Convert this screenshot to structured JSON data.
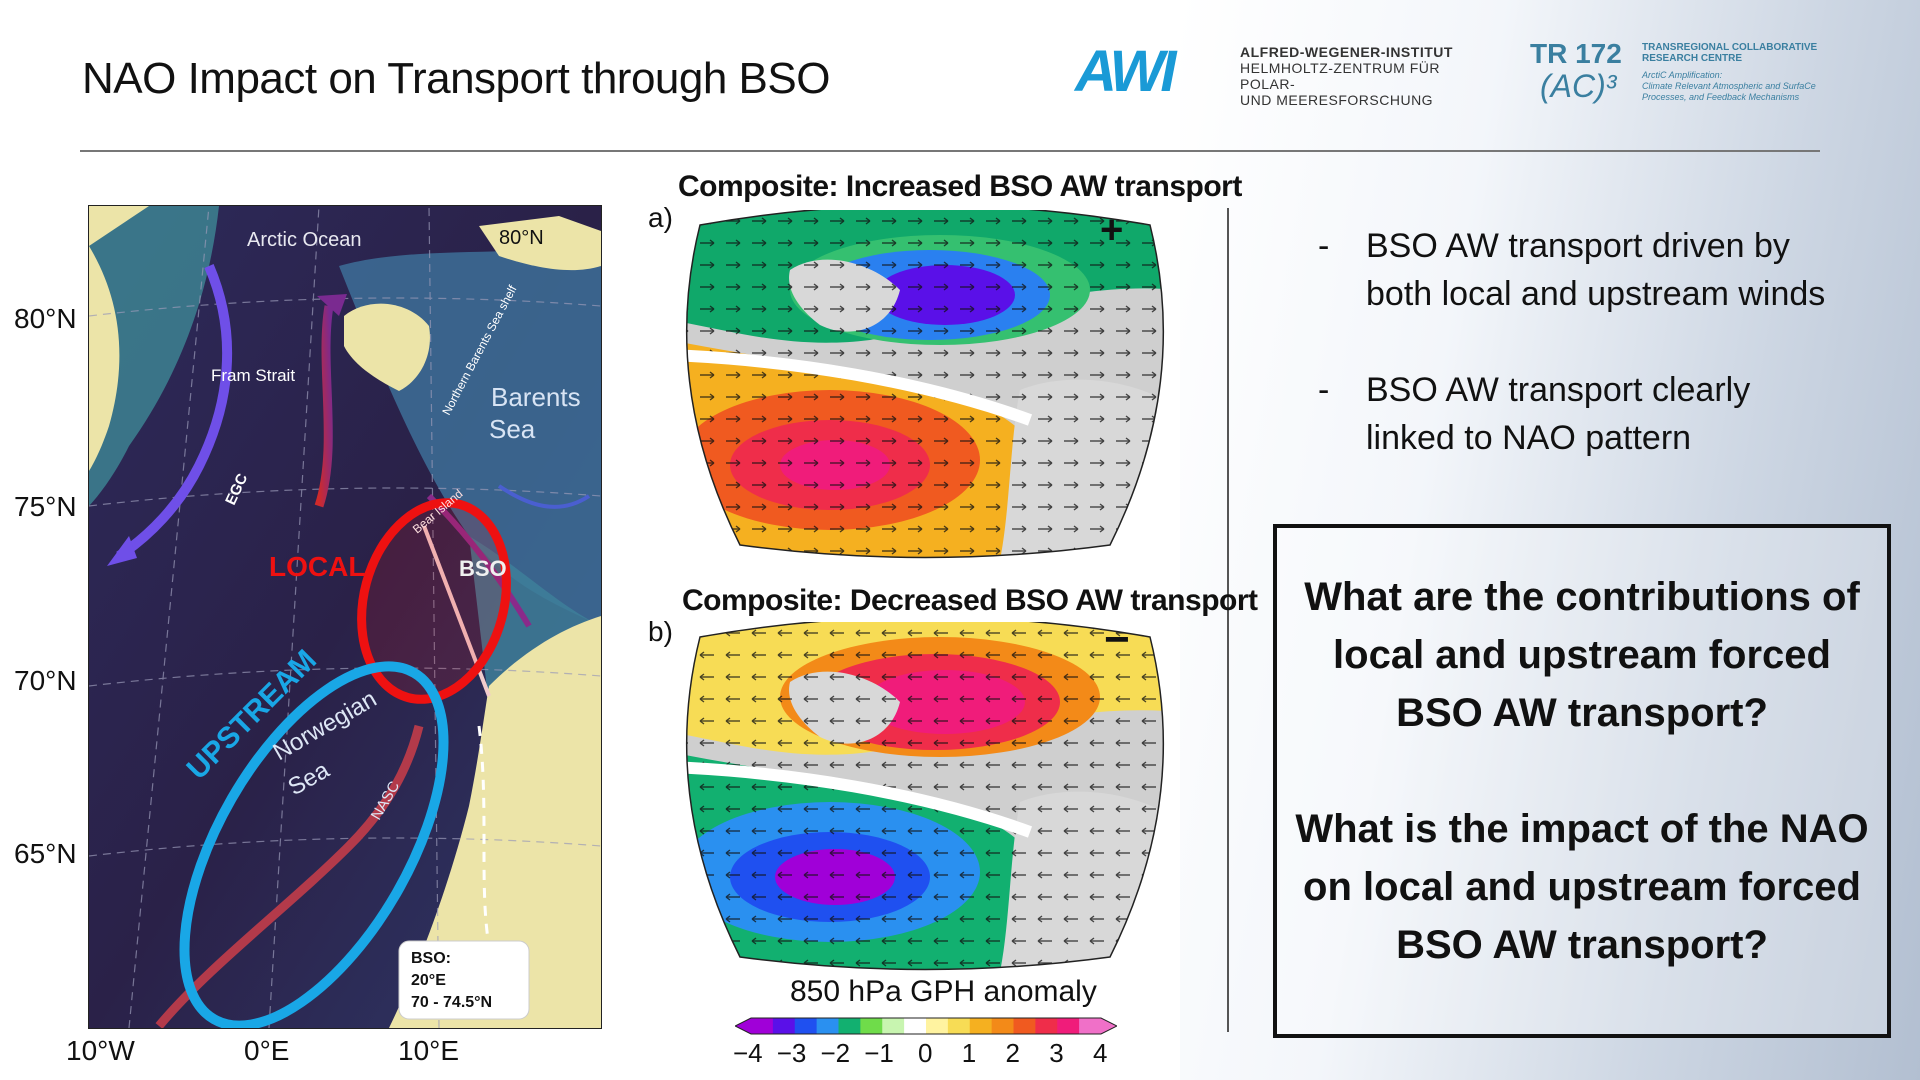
{
  "slide": {
    "title": "NAO Impact on Transport through BSO"
  },
  "logos": {
    "awi_mark": "AWI",
    "awi_line1": "ALFRED-WEGENER-INSTITUT",
    "awi_line2": "HELMHOLTZ-ZENTRUM FÜR POLAR-",
    "awi_line3": "UND MEERESFORSCHUNG",
    "tr_mark": "TR 172",
    "tr_sub": "(AC)³",
    "tr_line1": "TRANSREGIONAL COLLABORATIVE",
    "tr_line2": "RESEARCH CENTRE",
    "tr_small1": "ArctiC Amplification:",
    "tr_small2": "Climate Relevant Atmospheric and SurfaCe",
    "tr_small3": "Processes, and Feedback Mechanisms"
  },
  "left_map": {
    "lat_labels": [
      "80°N",
      "75°N",
      "70°N",
      "65°N"
    ],
    "lon_labels": [
      "10°W",
      "0°E",
      "10°E"
    ],
    "labels": {
      "arctic": "Arctic Ocean",
      "n80": "80°N",
      "fram": "Fram Strait",
      "nbss": "Northern Barents Sea shelf",
      "barents1": "Barents",
      "barents2": "Sea",
      "egc": "EGC",
      "bear": "Bear Island",
      "local": "LOCAL",
      "bso": "BSO",
      "upstream": "UPSTREAM",
      "norw1": "Norwegian",
      "norw2": "Sea",
      "nasc": "NASC",
      "box1": "BSO:",
      "box2": "20°E",
      "box3": "70 - 74.5°N"
    },
    "colors": {
      "local": "#ee1111",
      "upstream": "#19a7e6",
      "ocean_deep": "#2b2147",
      "land": "#ece4a8"
    }
  },
  "panels": {
    "a": {
      "letter": "a)",
      "title": "Composite: Increased BSO AW transport",
      "sign": "+"
    },
    "b": {
      "letter": "b)",
      "title": "Composite: Decreased BSO AW transport",
      "sign": "−"
    }
  },
  "colorbar": {
    "title": "850 hPa GPH anomaly",
    "ticks": [
      "−4",
      "−3",
      "−2",
      "−1",
      "0",
      "1",
      "2",
      "3",
      "4"
    ],
    "colors": [
      "#a000d8",
      "#5a10e8",
      "#1f50f0",
      "#2a90f0",
      "#12b070",
      "#6fdc4a",
      "#c8f5b0",
      "#ffffff",
      "#fff3a0",
      "#f7dc55",
      "#f5b020",
      "#f38a18",
      "#f05a20",
      "#ef2d4a",
      "#f01c7a",
      "#f070c8"
    ]
  },
  "bullets": [
    {
      "dash": "-",
      "text": "BSO AW transport driven by both local and upstream winds"
    },
    {
      "dash": "-",
      "text": "BSO AW transport clearly linked to NAO pattern"
    }
  ],
  "questions": {
    "q1_l1": "What are the contributions of",
    "q1_l2": "local and upstream forced",
    "q1_l3": "BSO AW transport?",
    "q2_l1": "What is the impact of the NAO",
    "q2_l2": "on local and upstream forced",
    "q2_l3": "BSO AW transport?"
  }
}
